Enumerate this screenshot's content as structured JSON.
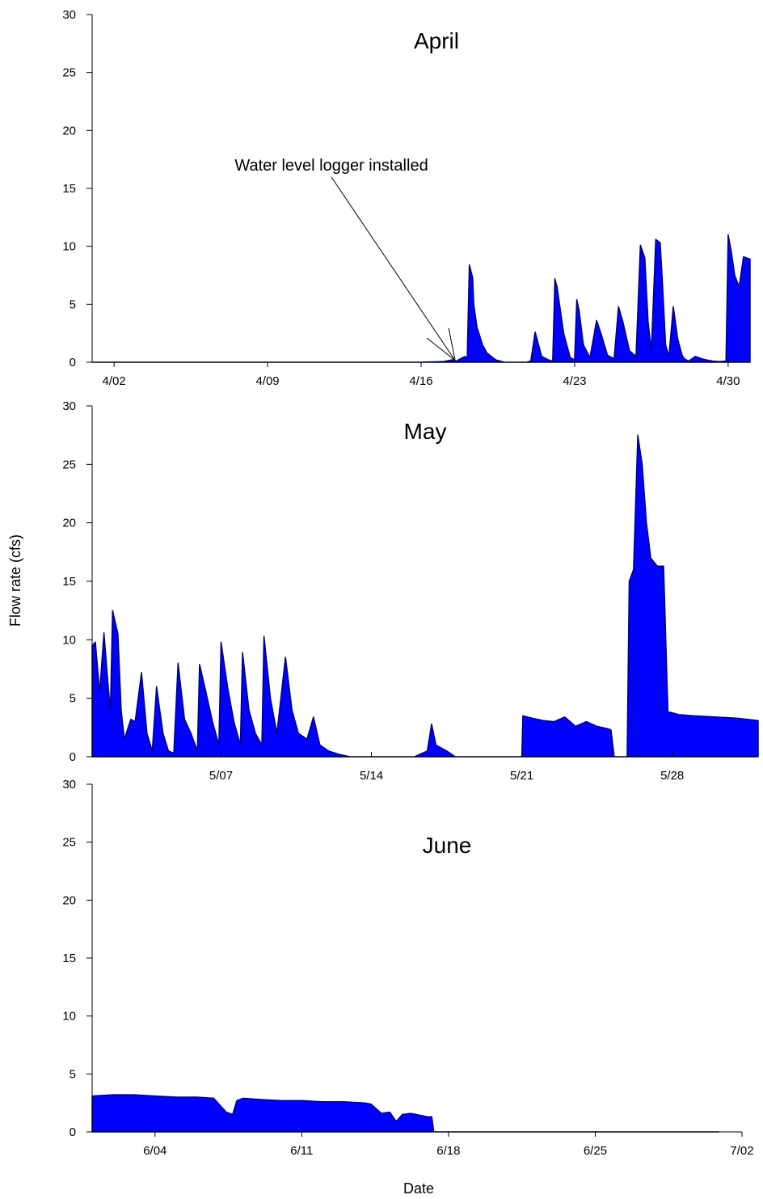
{
  "figure": {
    "ylabel": "Flow rate (cfs)",
    "xlabel": "Date",
    "fill_color": "#0000ff",
    "line_color": "#00007a"
  },
  "chart_data": [
    {
      "type": "area",
      "title": "April",
      "xlim": [
        "4/01",
        "5/01"
      ],
      "ylim": [
        0,
        30
      ],
      "yticks": [
        0,
        5,
        10,
        15,
        20,
        25,
        30
      ],
      "xticks": [
        {
          "date": "4/02",
          "label": "4/02"
        },
        {
          "date": "4/09",
          "label": "4/09"
        },
        {
          "date": "4/16",
          "label": "4/16"
        },
        {
          "date": "4/23",
          "label": "4/23"
        },
        {
          "date": "4/30",
          "label": "4/30"
        }
      ],
      "annotation": {
        "text": "Water level logger installed",
        "date": "4/17"
      },
      "series": [
        {
          "x": [
            "4/01",
            "4/16",
            "4/17",
            "4/17.4",
            "4/17.6",
            "4/17.8",
            "4/18",
            "4/18.1",
            "4/18.2",
            "4/18.35",
            "4/18.4",
            "4/18.55",
            "4/18.8",
            "4/19",
            "4/19.2",
            "4/19.4",
            "4/19.8",
            "4/20.4",
            "4/20.8",
            "4/21",
            "4/21.2",
            "4/21.5",
            "4/21.8",
            "4/22",
            "4/22.1",
            "4/22.2",
            "4/22.5",
            "4/22.8",
            "4/23",
            "4/23.1",
            "4/23.2",
            "4/23.4",
            "4/23.7",
            "4/24",
            "4/24.2",
            "4/24.5",
            "4/24.8",
            "4/25",
            "4/25.2",
            "4/25.5",
            "4/25.8",
            "4/26",
            "4/26.2",
            "4/26.35",
            "4/26.5",
            "4/26.7",
            "4/26.9",
            "4/27",
            "4/27.15",
            "4/27.3",
            "4/27.5",
            "4/27.7",
            "4/27.9",
            "4/28",
            "4/28.2",
            "4/28.5",
            "4/28.8",
            "4/29",
            "4/29.3",
            "4/29.6",
            "4/29.9",
            "4/30",
            "4/30.15",
            "4/30.3",
            "4/30.5",
            "4/30.7",
            "5/01"
          ],
          "y": [
            0,
            0,
            0.05,
            0.2,
            0.1,
            0.3,
            0.5,
            0.3,
            8.4,
            7.3,
            5,
            3,
            1.5,
            0.8,
            0.5,
            0.2,
            0,
            0,
            0,
            0.1,
            2.6,
            0.5,
            0.2,
            0.1,
            7.2,
            6.5,
            2.5,
            0.4,
            0.2,
            5.4,
            4.5,
            1.5,
            0.4,
            3.6,
            2.5,
            0.6,
            0.3,
            4.8,
            3.5,
            1,
            0.5,
            10.1,
            9,
            3.5,
            1,
            10.6,
            10.3,
            7,
            1.5,
            0.5,
            4.8,
            2,
            0.6,
            0.3,
            0.1,
            0.5,
            0.3,
            0.2,
            0.1,
            0.05,
            0.1,
            11,
            9.5,
            7.5,
            6.5,
            9.1,
            8.9
          ]
        }
      ]
    },
    {
      "type": "area",
      "title": "May",
      "xlim": [
        "5/01",
        "6/01"
      ],
      "ylim": [
        0,
        30
      ],
      "yticks": [
        0,
        5,
        10,
        15,
        20,
        25,
        30
      ],
      "xticks": [
        {
          "date": "5/07",
          "label": "5/07"
        },
        {
          "date": "5/14",
          "label": "5/14"
        },
        {
          "date": "5/21",
          "label": "5/21"
        },
        {
          "date": "5/28",
          "label": "5/28"
        }
      ],
      "series": [
        {
          "x": [
            "5/01",
            "5/01.15",
            "5/01.35",
            "5/01.55",
            "5/01.75",
            "5/01.85",
            "5/01.95",
            "5/02.2",
            "5/02.35",
            "5/02.5",
            "5/02.8",
            "5/03",
            "5/03.3",
            "5/03.55",
            "5/03.8",
            "5/04",
            "5/04.3",
            "5/04.55",
            "5/04.8",
            "5/05",
            "5/05.3",
            "5/05.6",
            "5/05.9",
            "5/06",
            "5/06.3",
            "5/06.6",
            "5/06.9",
            "5/07",
            "5/07.3",
            "5/07.6",
            "5/07.9",
            "5/08",
            "5/08.3",
            "5/08.6",
            "5/08.9",
            "5/09",
            "5/09.3",
            "5/09.6",
            "5/10",
            "5/10.3",
            "5/10.6",
            "5/11",
            "5/11.3",
            "5/11.6",
            "5/12",
            "5/12.5",
            "5/13",
            "5/14",
            "5/16",
            "5/16.6",
            "5/16.8",
            "5/17",
            "5/17.2",
            "5/17.5",
            "5/17.9",
            "5/18.3",
            "5/19",
            "5/20",
            "5/20.9",
            "5/21",
            "5/21.05",
            "5/21.5",
            "5/22",
            "5/22.5",
            "5/23",
            "5/23.5",
            "5/24",
            "5/24.5",
            "5/25",
            "5/25.15",
            "5/25.3",
            "5/25.9",
            "5/26",
            "5/26.2",
            "5/26.4",
            "5/26.6",
            "5/26.8",
            "5/27",
            "5/27.3",
            "5/27.6",
            "5/27.8",
            "5/27.9",
            "5/28.3",
            "5/29",
            "5/30",
            "5/31",
            "6/01"
          ],
          "y": [
            9.5,
            9.8,
            5.5,
            10.6,
            6,
            4,
            12.5,
            10.5,
            4,
            1.5,
            3.2,
            3,
            7.2,
            2,
            0.5,
            6,
            2,
            0.5,
            0.3,
            8,
            3.2,
            2,
            0.5,
            7.9,
            5.5,
            3,
            1,
            9.8,
            6,
            3,
            1,
            8.9,
            4,
            2,
            1,
            10.3,
            5,
            2,
            8.5,
            4,
            2,
            1.5,
            3.4,
            1,
            0.5,
            0.2,
            0,
            0,
            0,
            0.5,
            2.8,
            1,
            0.8,
            0.5,
            0,
            0,
            0,
            0,
            0,
            0,
            3.5,
            3.3,
            3.1,
            3,
            3.4,
            2.6,
            3,
            2.6,
            2.4,
            2.3,
            0,
            0,
            15,
            16,
            27.5,
            25,
            20,
            17,
            16.3,
            16.3,
            3.8,
            3.8,
            3.6,
            3.5,
            3.4,
            3.3,
            3.1
          ]
        }
      ]
    },
    {
      "type": "area",
      "title": "June",
      "xlim": [
        "6/01",
        "7/02"
      ],
      "ylim": [
        0,
        30
      ],
      "yticks": [
        0,
        5,
        10,
        15,
        20,
        25,
        30
      ],
      "xticks": [
        {
          "date": "6/04",
          "label": "6/04"
        },
        {
          "date": "6/11",
          "label": "6/11"
        },
        {
          "date": "6/18",
          "label": "6/18"
        },
        {
          "date": "6/25",
          "label": "6/25"
        },
        {
          "date": "7/02",
          "label": "7/02"
        }
      ],
      "series": [
        {
          "x": [
            "6/01",
            "6/02",
            "6/03",
            "6/04",
            "6/05",
            "6/06",
            "6/06.8",
            "6/07.4",
            "6/07.7",
            "6/07.9",
            "6/08.2",
            "6/09",
            "6/10",
            "6/11",
            "6/12",
            "6/13",
            "6/14",
            "6/14.3",
            "6/14.8",
            "6/15.2",
            "6/15.5",
            "6/15.8",
            "6/16.2",
            "6/17",
            "6/17.2",
            "6/17.3",
            "6/18",
            "6/25",
            "6/30.9"
          ],
          "y": [
            3.1,
            3.2,
            3.2,
            3.1,
            3,
            3,
            2.9,
            1.7,
            1.5,
            2.7,
            2.9,
            2.8,
            2.7,
            2.7,
            2.6,
            2.6,
            2.5,
            2.4,
            1.6,
            1.7,
            0.9,
            1.5,
            1.6,
            1.3,
            1.3,
            0,
            0,
            0,
            0
          ]
        }
      ]
    }
  ]
}
